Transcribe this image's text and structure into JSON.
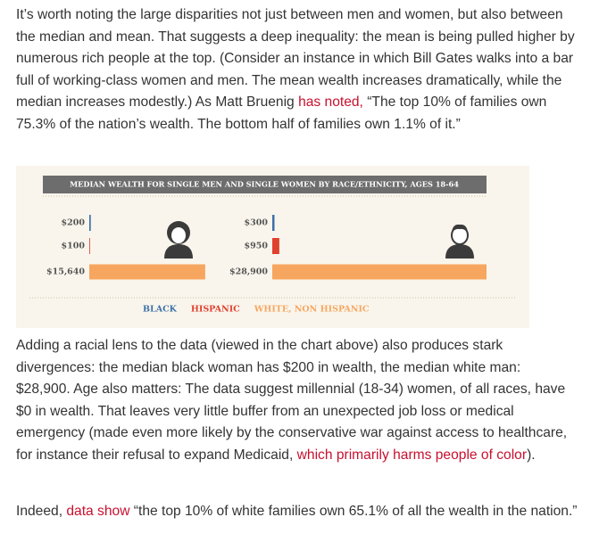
{
  "paragraphs": [
    [
      {
        "text": "It’s worth noting the large disparities not just between men and women, but also between the median and mean. That suggests a deep inequality: the mean is being pulled higher by numerous rich people at the top. (Consider an instance in which Bill Gates walks into a bar full of working-class women and men. The mean wealth increases dramatically, while the median increases modestly.) As Matt Bruenig "
      },
      {
        "text": "has noted,",
        "link": true
      },
      {
        "text": " “The top 10% of families own 75.3% of the nation’s wealth. The bottom half of families own 1.1% of it.”"
      }
    ],
    [
      {
        "text": "Adding a racial lens to the data (viewed in the chart above) also produces stark divergences: the median black woman has $200 in wealth, the median white man: $28,900. Age also matters: The data suggest millennial (18-34) women, of all races, have $0 in wealth. That leaves very little buffer from an unexpected job loss or medical emergency (made even more likely by the conservative war against access to healthcare, for instance their refusal to expand Medicaid, "
      },
      {
        "text": "which primarily harms people of color",
        "link": true
      },
      {
        "text": ")."
      }
    ],
    [
      {
        "text": "Indeed, "
      },
      {
        "text": "data show",
        "link": true
      },
      {
        "text": " “the top 10% of white families own 65.1% of all the wealth in the nation.”"
      }
    ]
  ],
  "chart_data": {
    "type": "bar",
    "title": "MEDIAN WEALTH FOR SINGLE MEN AND SINGLE WOMEN BY RACE/ETHNICITY, AGES 18-64",
    "categories": [
      "BLACK",
      "HISPANIC",
      "WHITE, NON HISPANIC"
    ],
    "colors": [
      "#3c6fa8",
      "#e0402f",
      "#f7a660"
    ],
    "groups": [
      {
        "values": [
          200,
          100,
          15640
        ],
        "value_labels": [
          "$200",
          "$100",
          "$15,640"
        ]
      },
      {
        "values": [
          300,
          950,
          28900
        ],
        "value_labels": [
          "$300",
          "$950",
          "$28,900"
        ]
      }
    ]
  }
}
